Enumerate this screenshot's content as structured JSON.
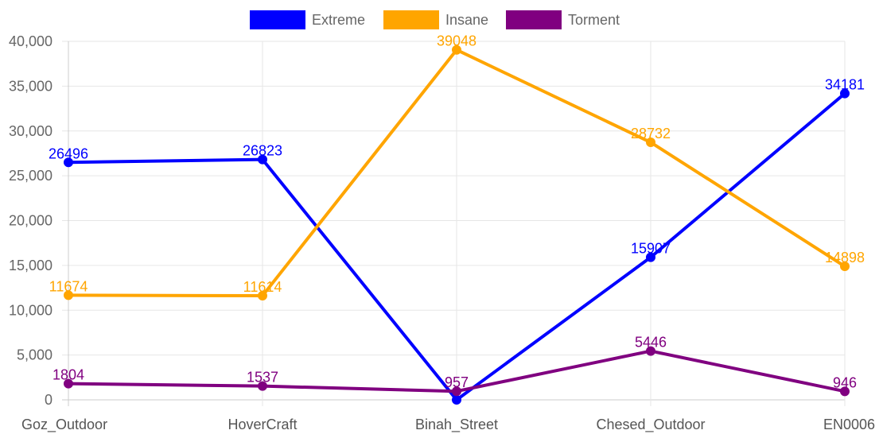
{
  "chart_data": {
    "type": "line",
    "categories": [
      "Goz_Outdoor",
      "HoverCraft",
      "Binah_Street",
      "Chesed_Outdoor",
      "EN0006"
    ],
    "series": [
      {
        "name": "Extreme",
        "color": "#0000ff",
        "values": [
          26496,
          26823,
          0,
          15907,
          34181
        ],
        "labels": [
          "26496",
          "26823",
          "",
          "15907",
          "34181"
        ]
      },
      {
        "name": "Insane",
        "color": "#ffa500",
        "values": [
          11674,
          11614,
          39048,
          28732,
          14898
        ],
        "labels": [
          "11674",
          "11614",
          "39048",
          "28732",
          "14898"
        ]
      },
      {
        "name": "Torment",
        "color": "#800080",
        "values": [
          1804,
          1537,
          957,
          5446,
          946
        ],
        "labels": [
          "1804",
          "1537",
          "957",
          "5446",
          "946"
        ]
      }
    ],
    "y_ticks": [
      "0",
      "5,000",
      "10,000",
      "15,000",
      "20,000",
      "25,000",
      "30,000",
      "35,000",
      "40,000"
    ],
    "ylim": [
      0,
      40000
    ],
    "grid": true,
    "legend_position": "top-center",
    "title": "",
    "xlabel": "",
    "ylabel": ""
  }
}
